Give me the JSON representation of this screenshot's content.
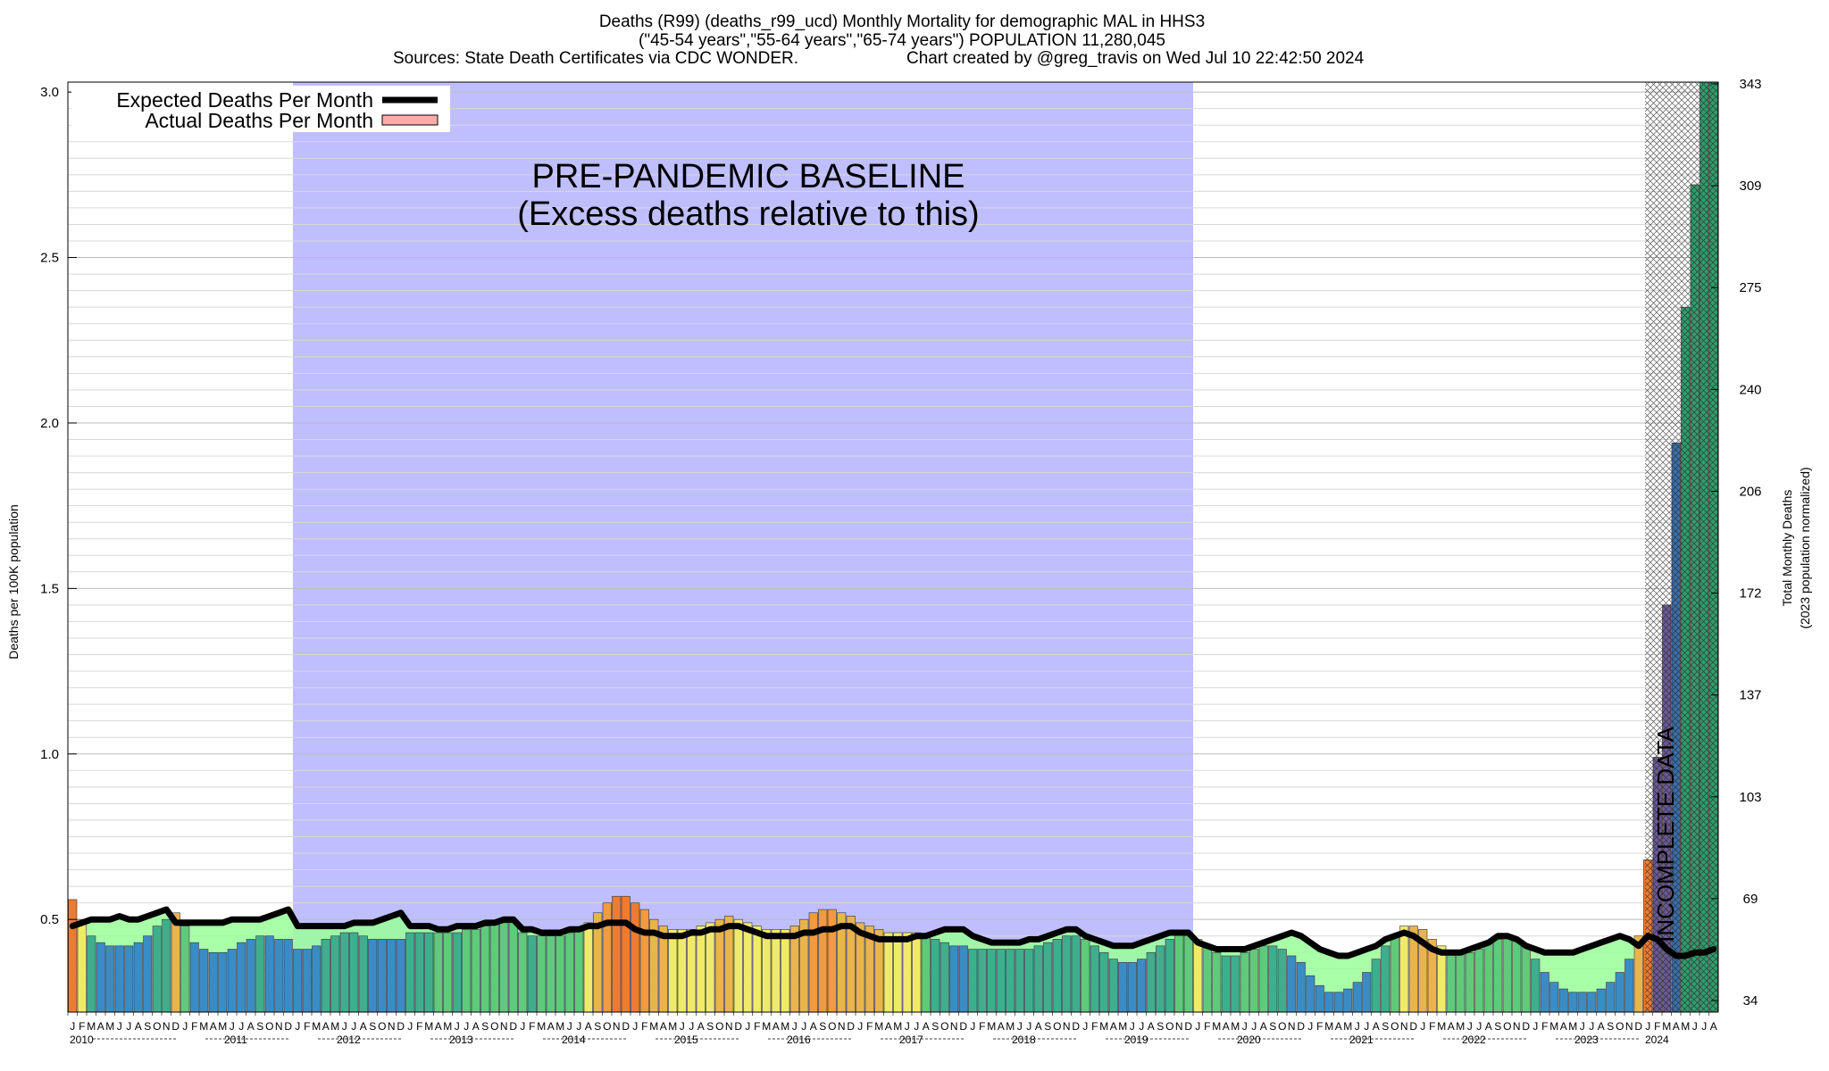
{
  "chart_data": {
    "type": "bar",
    "title_lines": [
      "Deaths (R99) (deaths_r99_ucd) Monthly Mortality for demographic MAL in HHS3",
      "(\"45-54 years\",\"55-64 years\",\"65-74 years\") POPULATION 11,280,045"
    ],
    "sources": "Sources: State Death Certificates via CDC WONDER.",
    "credit": "Chart created by @greg_travis on Wed Jul 10 22:42:50 2024",
    "ylabel": "Deaths per 100K population",
    "y2label_lines": [
      "Total Monthly Deaths",
      "(2023 population normalized)"
    ],
    "ylim": [
      0.22,
      3.03
    ],
    "yticks": [
      0.5,
      1.0,
      1.5,
      2.0,
      2.5,
      3.0
    ],
    "ytick_labels": [
      "0.5",
      "1.0",
      "1.5",
      "2.0",
      "2.5",
      "3.0"
    ],
    "y2ticks": [
      34,
      69,
      103,
      137,
      172,
      206,
      240,
      275,
      309,
      343
    ],
    "grid": true,
    "legend": {
      "position": "top-left",
      "entries": [
        "Expected Deaths Per Month",
        "Actual Deaths Per Month"
      ]
    },
    "baseline_band": {
      "label_lines": [
        "PRE-PANDEMIC BASELINE",
        "(Excess deaths relative to this)"
      ],
      "start": "2012-01",
      "end": "2019-12",
      "color": "#bfbfff"
    },
    "incomplete_label": "INCOMPLETE DATA",
    "month_letters": [
      "J",
      "F",
      "M",
      "A",
      "M",
      "J",
      "J",
      "A",
      "S",
      "O",
      "N",
      "D"
    ],
    "years": [
      "2010",
      "2011",
      "2012",
      "2013",
      "2014",
      "2015",
      "2016",
      "2017",
      "2018",
      "2019",
      "2020",
      "2021",
      "2022",
      "2023",
      "2024"
    ],
    "start_month": "2010-01",
    "end_month": "2024-08",
    "incomplete_from": "2024-01",
    "values": [
      0.56,
      0.5,
      0.45,
      0.43,
      0.42,
      0.42,
      0.42,
      0.43,
      0.45,
      0.48,
      0.5,
      0.52,
      0.48,
      0.43,
      0.41,
      0.4,
      0.4,
      0.41,
      0.43,
      0.44,
      0.45,
      0.45,
      0.44,
      0.44,
      0.41,
      0.41,
      0.42,
      0.44,
      0.45,
      0.46,
      0.46,
      0.45,
      0.44,
      0.44,
      0.44,
      0.44,
      0.46,
      0.46,
      0.46,
      0.46,
      0.46,
      0.46,
      0.47,
      0.47,
      0.48,
      0.49,
      0.49,
      0.49,
      0.46,
      0.45,
      0.45,
      0.45,
      0.45,
      0.46,
      0.47,
      0.49,
      0.52,
      0.55,
      0.57,
      0.57,
      0.55,
      0.53,
      0.5,
      0.48,
      0.47,
      0.47,
      0.47,
      0.48,
      0.49,
      0.5,
      0.51,
      0.5,
      0.49,
      0.48,
      0.47,
      0.47,
      0.47,
      0.48,
      0.5,
      0.52,
      0.53,
      0.53,
      0.52,
      0.51,
      0.49,
      0.48,
      0.47,
      0.46,
      0.46,
      0.46,
      0.46,
      0.45,
      0.44,
      0.43,
      0.42,
      0.42,
      0.41,
      0.41,
      0.41,
      0.41,
      0.41,
      0.41,
      0.41,
      0.42,
      0.43,
      0.44,
      0.45,
      0.45,
      0.44,
      0.42,
      0.4,
      0.38,
      0.37,
      0.37,
      0.38,
      0.4,
      0.42,
      0.44,
      0.46,
      0.46,
      0.44,
      0.42,
      0.4,
      0.39,
      0.39,
      0.4,
      0.41,
      0.42,
      0.42,
      0.41,
      0.39,
      0.37,
      0.33,
      0.3,
      0.28,
      0.28,
      0.29,
      0.31,
      0.34,
      0.38,
      0.42,
      0.45,
      0.48,
      0.48,
      0.47,
      0.44,
      0.42,
      0.4,
      0.4,
      0.4,
      0.41,
      0.43,
      0.44,
      0.45,
      0.44,
      0.42,
      0.38,
      0.34,
      0.31,
      0.29,
      0.28,
      0.28,
      0.28,
      0.29,
      0.31,
      0.34,
      0.38,
      0.45,
      0.68,
      0.99,
      1.45,
      1.94,
      2.35,
      2.72,
      3.03,
      3.03
    ],
    "expected": [
      0.48,
      0.49,
      0.5,
      0.5,
      0.5,
      0.51,
      0.5,
      0.5,
      0.51,
      0.52,
      0.53,
      0.49,
      0.49,
      0.49,
      0.49,
      0.49,
      0.49,
      0.5,
      0.5,
      0.5,
      0.5,
      0.51,
      0.52,
      0.53,
      0.48,
      0.48,
      0.48,
      0.48,
      0.48,
      0.48,
      0.49,
      0.49,
      0.49,
      0.5,
      0.51,
      0.52,
      0.48,
      0.48,
      0.48,
      0.47,
      0.47,
      0.48,
      0.48,
      0.48,
      0.49,
      0.49,
      0.5,
      0.5,
      0.47,
      0.47,
      0.46,
      0.46,
      0.46,
      0.47,
      0.47,
      0.48,
      0.48,
      0.49,
      0.49,
      0.49,
      0.47,
      0.46,
      0.46,
      0.45,
      0.45,
      0.45,
      0.46,
      0.46,
      0.47,
      0.47,
      0.48,
      0.48,
      0.47,
      0.46,
      0.45,
      0.45,
      0.45,
      0.45,
      0.46,
      0.46,
      0.47,
      0.47,
      0.48,
      0.48,
      0.46,
      0.45,
      0.44,
      0.44,
      0.44,
      0.44,
      0.45,
      0.45,
      0.46,
      0.47,
      0.47,
      0.47,
      0.45,
      0.44,
      0.43,
      0.43,
      0.43,
      0.43,
      0.44,
      0.44,
      0.45,
      0.46,
      0.47,
      0.47,
      0.45,
      0.44,
      0.43,
      0.42,
      0.42,
      0.42,
      0.43,
      0.44,
      0.45,
      0.46,
      0.46,
      0.46,
      0.43,
      0.42,
      0.41,
      0.41,
      0.41,
      0.41,
      0.42,
      0.43,
      0.44,
      0.45,
      0.46,
      0.45,
      0.43,
      0.41,
      0.4,
      0.39,
      0.39,
      0.4,
      0.41,
      0.42,
      0.44,
      0.45,
      0.46,
      0.45,
      0.43,
      0.41,
      0.4,
      0.4,
      0.4,
      0.41,
      0.42,
      0.43,
      0.45,
      0.45,
      0.44,
      0.42,
      0.41,
      0.4,
      0.4,
      0.4,
      0.4,
      0.41,
      0.42,
      0.43,
      0.44,
      0.45,
      0.44,
      0.42,
      0.45,
      0.44,
      0.41,
      0.39,
      0.39,
      0.4,
      0.4,
      0.41
    ],
    "series": [
      {
        "name": "Expected Deaths Per Month",
        "color": "#000000"
      },
      {
        "name": "Actual Deaths Per Month",
        "color": "#ffaaaa"
      }
    ]
  }
}
